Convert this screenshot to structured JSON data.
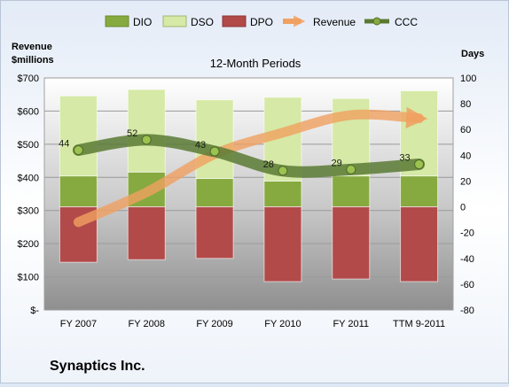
{
  "chart_data": {
    "type": "bar",
    "title": "12-Month Periods",
    "company": "Synaptics Inc.",
    "left_axis_label": "Revenue\n$millions",
    "right_axis_label": "Days",
    "categories": [
      "FY 2007",
      "FY 2008",
      "FY 2009",
      "FY 2010",
      "FY 2011",
      "TTM 9-2011"
    ],
    "left_axis": {
      "min": 0,
      "max": 700,
      "step": 100,
      "tick_labels": [
        "$-",
        "$100",
        "$200",
        "$300",
        "$400",
        "$500",
        "$600",
        "$700"
      ]
    },
    "right_axis": {
      "min": -80,
      "max": 100,
      "step": 20,
      "tick_labels": [
        "-80",
        "-60",
        "-40",
        "-20",
        "0",
        "20",
        "40",
        "60",
        "80",
        "100"
      ]
    },
    "legend": {
      "position": "top",
      "items": [
        "DIO",
        "DSO",
        "DPO",
        "Revenue",
        "CCC"
      ]
    },
    "series": [
      {
        "name": "DIO",
        "axis": "right",
        "color": "#86aa3f",
        "ranges": [
          [
            0,
            24
          ],
          [
            0,
            27
          ],
          [
            0,
            22
          ],
          [
            0,
            20
          ],
          [
            0,
            24
          ],
          [
            0,
            24
          ]
        ]
      },
      {
        "name": "DSO",
        "axis": "right",
        "color": "#d6e9a6",
        "ranges": [
          [
            24,
            86
          ],
          [
            27,
            91
          ],
          [
            22,
            83
          ],
          [
            20,
            85
          ],
          [
            24,
            84
          ],
          [
            24,
            90
          ]
        ]
      },
      {
        "name": "DPO",
        "axis": "right",
        "color": "#b24a4a",
        "ranges": [
          [
            -43,
            0
          ],
          [
            -41,
            0
          ],
          [
            -40,
            0
          ],
          [
            -58,
            0
          ],
          [
            -56,
            0
          ],
          [
            -58,
            0
          ]
        ]
      },
      {
        "name": "Revenue",
        "axis": "left",
        "color": "#f0a060",
        "values": [
          265,
          355,
          470,
          535,
          588,
          578
        ]
      },
      {
        "name": "CCC",
        "axis": "right",
        "color": "#5a7a34",
        "values": [
          44,
          52,
          43,
          28,
          29,
          33
        ]
      }
    ],
    "ccc_labels": [
      "44",
      "52",
      "43",
      "28",
      "29",
      "33"
    ],
    "grid": true
  }
}
